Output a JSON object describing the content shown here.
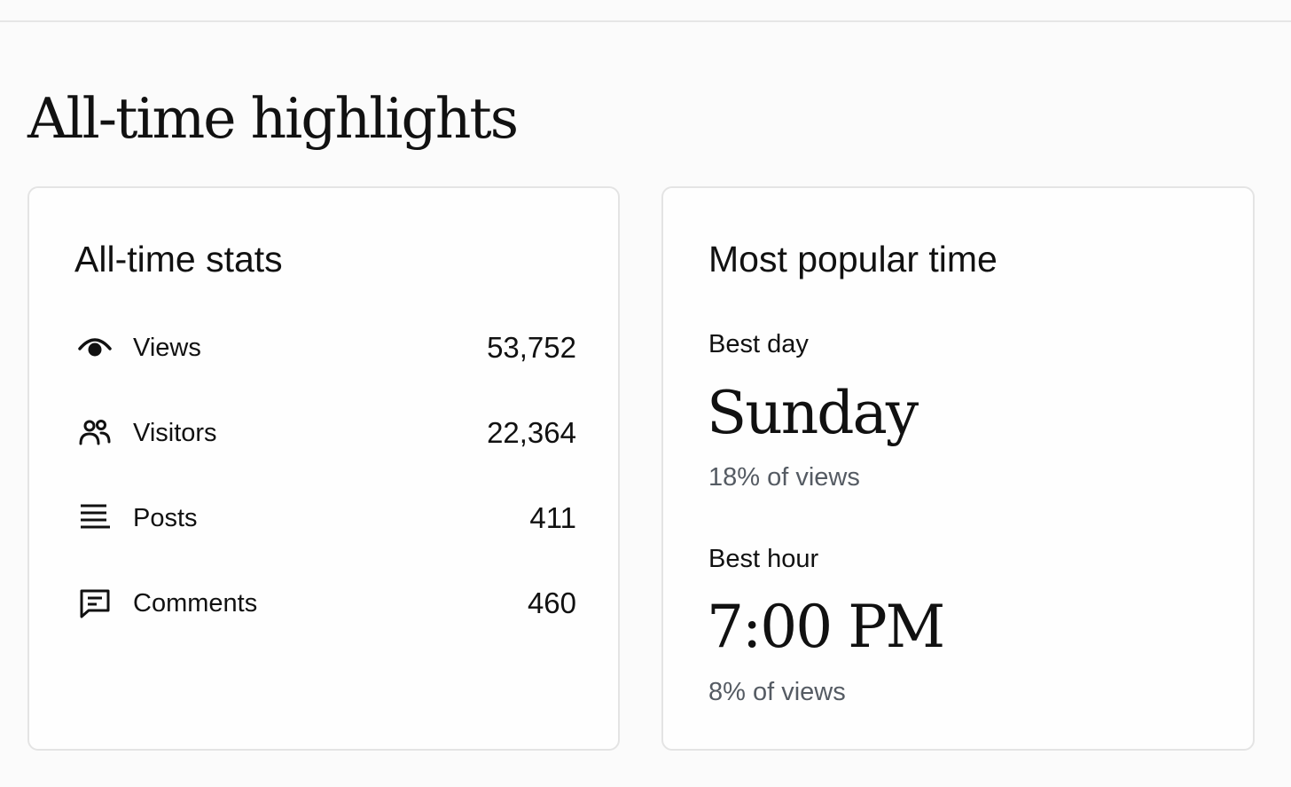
{
  "page": {
    "title": "All-time highlights"
  },
  "stats_card": {
    "title": "All-time stats",
    "items": [
      {
        "icon": "eye-icon",
        "label": "Views",
        "value": "53,752"
      },
      {
        "icon": "people-icon",
        "label": "Visitors",
        "value": "22,364"
      },
      {
        "icon": "lines-icon",
        "label": "Posts",
        "value": "411"
      },
      {
        "icon": "comment-icon",
        "label": "Comments",
        "value": "460"
      }
    ]
  },
  "time_card": {
    "title": "Most popular time",
    "best_day": {
      "label": "Best day",
      "value": "Sunday",
      "share": "18% of views"
    },
    "best_hour": {
      "label": "Best hour",
      "value": "7:00 PM",
      "share": "8% of views"
    }
  },
  "colors": {
    "background": "#fbfbfb",
    "card_border": "#e4e4e4",
    "text": "#111111",
    "muted_text": "#555b63"
  }
}
